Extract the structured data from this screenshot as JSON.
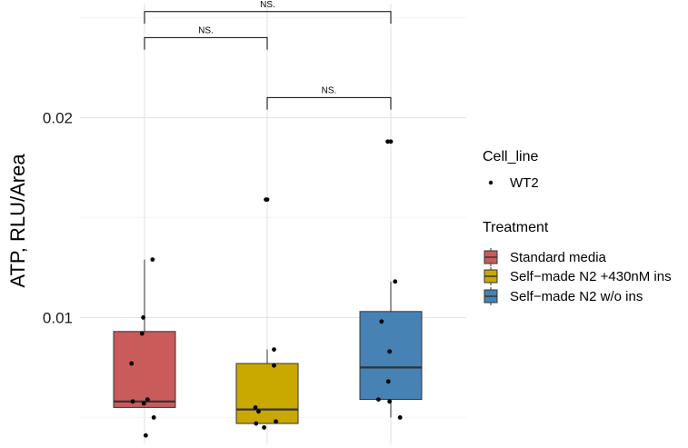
{
  "chart_data": {
    "type": "box",
    "ylabel": "ATP, RLU/Area",
    "xlabel": "",
    "ylim": [
      0.0037,
      0.0257
    ],
    "yticks": [
      0.01,
      0.02
    ],
    "ytick_labels": [
      "0.01",
      "0.02"
    ],
    "grid": true,
    "legend_position": "right",
    "groups": [
      {
        "name": "Standard media",
        "color": "#C95B5B",
        "box": {
          "whisker_low": 0.0055,
          "q1": 0.0055,
          "median": 0.0058,
          "q3": 0.0093,
          "whisker_high": 0.0129
        },
        "points": [
          [
            -0.21,
            0.0077
          ],
          [
            -0.02,
            0.01
          ],
          [
            -0.04,
            0.0092
          ],
          [
            0.13,
            0.0129
          ],
          [
            -0.19,
            0.0058
          ],
          [
            0.05,
            0.0059
          ],
          [
            -0.01,
            0.0057
          ],
          [
            0.15,
            0.005
          ],
          [
            0.02,
            0.0041
          ]
        ]
      },
      {
        "name": "Self−made N2 +430nM ins",
        "color": "#C9A800",
        "box": {
          "whisker_low": 0.0047,
          "q1": 0.0047,
          "median": 0.0054,
          "q3": 0.0077,
          "whisker_high": 0.0084
        },
        "points": [
          [
            -0.02,
            0.0159
          ],
          [
            0.0,
            0.0159
          ],
          [
            0.11,
            0.0084
          ],
          [
            0.11,
            0.0076
          ],
          [
            -0.19,
            0.0055
          ],
          [
            -0.14,
            0.0053
          ],
          [
            -0.18,
            0.0047
          ],
          [
            -0.05,
            0.0045
          ],
          [
            0.14,
            0.0048
          ]
        ]
      },
      {
        "name": "Self−made N2 w/o ins",
        "color": "#4682B4",
        "box": {
          "whisker_low": 0.005,
          "q1": 0.0059,
          "median": 0.0075,
          "q3": 0.0103,
          "whisker_high": 0.0118
        },
        "points": [
          [
            -0.05,
            0.0188
          ],
          [
            0.0,
            0.0188
          ],
          [
            0.07,
            0.0118
          ],
          [
            -0.15,
            0.0098
          ],
          [
            -0.02,
            0.0083
          ],
          [
            -0.04,
            0.0068
          ],
          [
            -0.2,
            0.0059
          ],
          [
            -0.02,
            0.0058
          ],
          [
            0.15,
            0.005
          ]
        ]
      }
    ],
    "comparisons": [
      {
        "from": 0,
        "to": 2,
        "y": 0.0253,
        "tip": 0.0247,
        "label": "NS."
      },
      {
        "from": 0,
        "to": 1,
        "y": 0.024,
        "tip": 0.0234,
        "label": "NS."
      },
      {
        "from": 1,
        "to": 2,
        "y": 0.021,
        "tip": 0.0204,
        "label": "NS."
      }
    ],
    "legend": {
      "cell_line_title": "Cell_line",
      "cell_line_items": [
        "WT2"
      ],
      "treatment_title": "Treatment",
      "treatment_items": [
        "Standard media",
        "Self−made N2 +430nM ins",
        "Self−made N2 w/o ins"
      ]
    }
  }
}
